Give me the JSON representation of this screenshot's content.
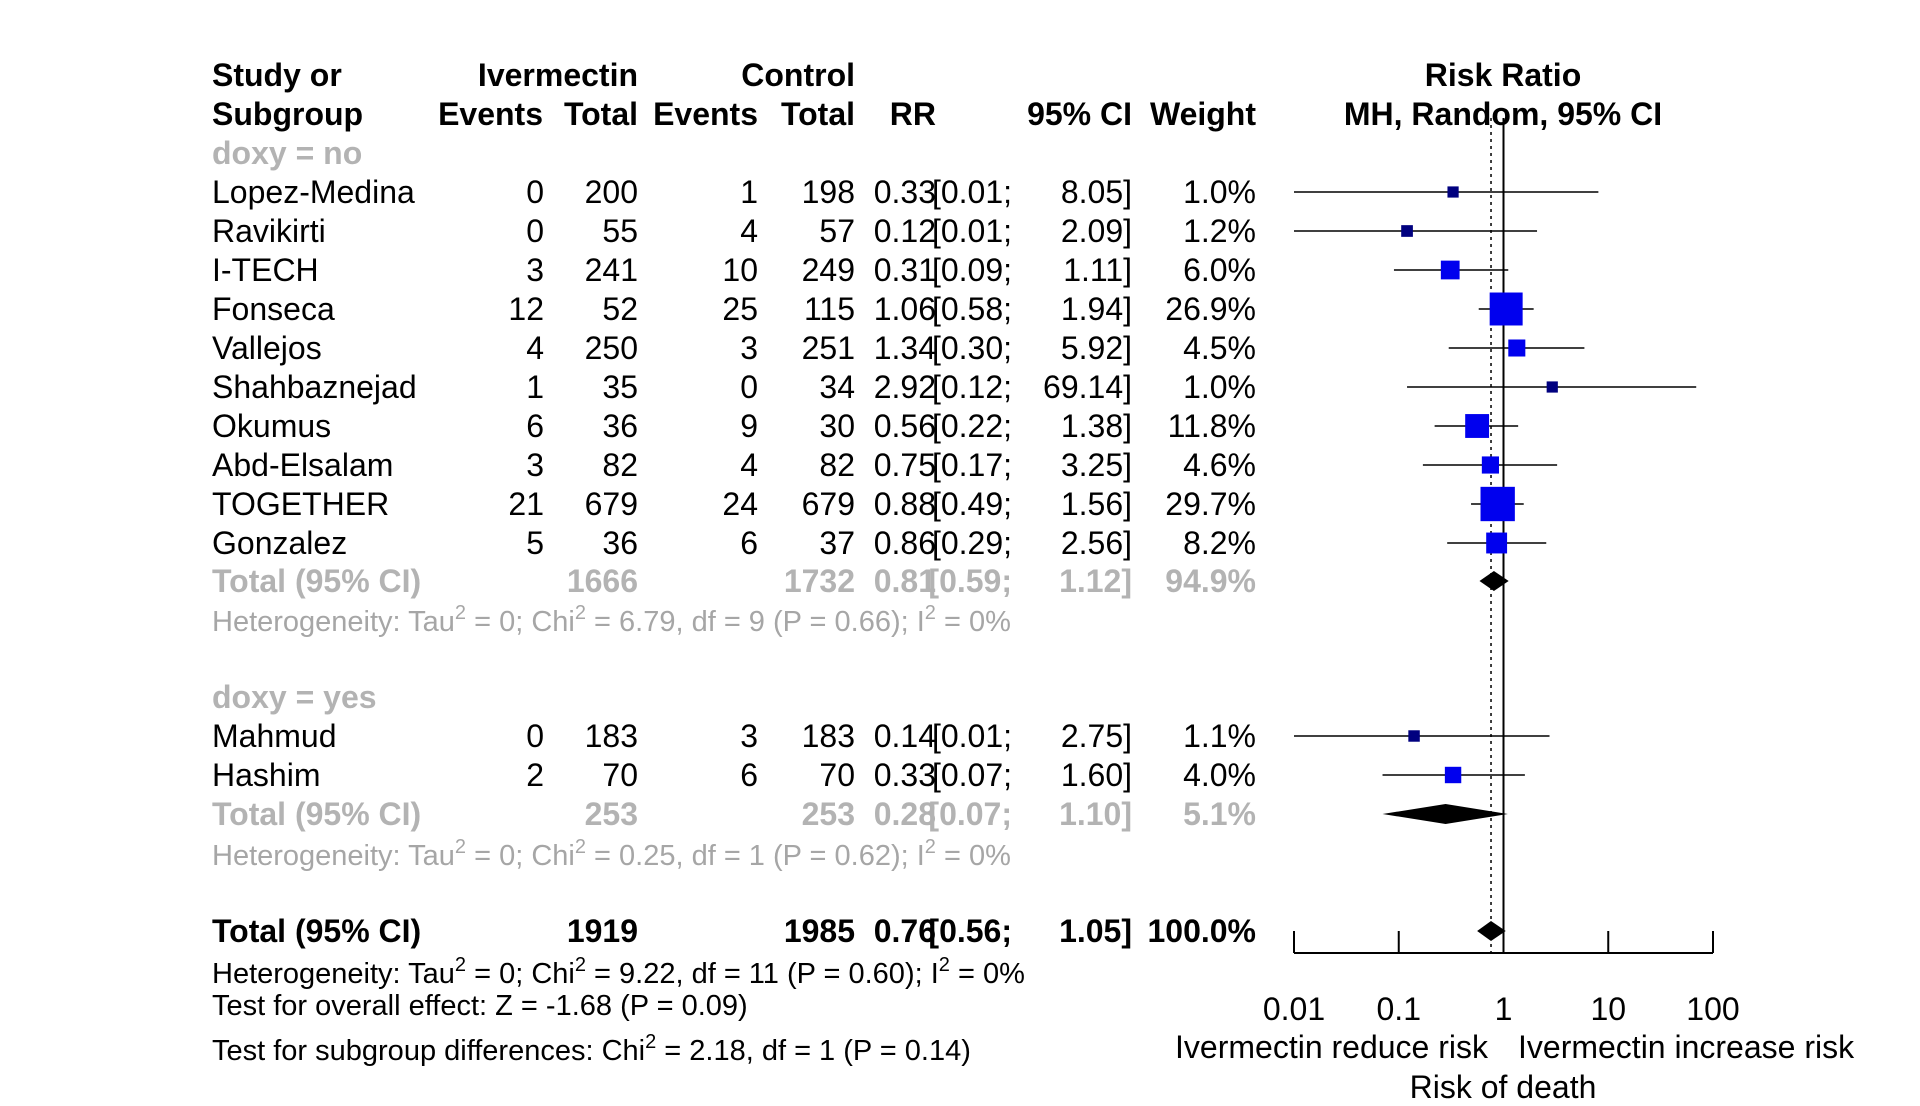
{
  "chart_data": {
    "type": "forest",
    "columns": {
      "study": [
        "Study or",
        "Subgroup"
      ],
      "ivermectin": "Ivermectin",
      "control": "Control",
      "events": "Events",
      "total": "Total",
      "rr": "RR",
      "ci": "95% CI",
      "weight": "Weight",
      "plot": [
        "Risk Ratio",
        "MH, Random, 95% CI"
      ]
    },
    "subgroups": [
      {
        "label": "doxy = no",
        "studies": [
          {
            "name": "Lopez-Medina",
            "ev_i": "0",
            "tot_i": "200",
            "ev_c": "1",
            "tot_c": "198",
            "rr": "0.33",
            "lo": "[0.01;",
            "hi": "8.05]",
            "weight": "1.0%",
            "rr_v": 0.33,
            "lo_v": 0.01,
            "hi_v": 8.05,
            "w_v": 1.0
          },
          {
            "name": "Ravikirti",
            "ev_i": "0",
            "tot_i": "55",
            "ev_c": "4",
            "tot_c": "57",
            "rr": "0.12",
            "lo": "[0.01;",
            "hi": "2.09]",
            "weight": "1.2%",
            "rr_v": 0.12,
            "lo_v": 0.01,
            "hi_v": 2.09,
            "w_v": 1.2
          },
          {
            "name": "I-TECH",
            "ev_i": "3",
            "tot_i": "241",
            "ev_c": "10",
            "tot_c": "249",
            "rr": "0.31",
            "lo": "[0.09;",
            "hi": "1.11]",
            "weight": "6.0%",
            "rr_v": 0.31,
            "lo_v": 0.09,
            "hi_v": 1.11,
            "w_v": 6.0
          },
          {
            "name": "Fonseca",
            "ev_i": "12",
            "tot_i": "52",
            "ev_c": "25",
            "tot_c": "115",
            "rr": "1.06",
            "lo": "[0.58;",
            "hi": "1.94]",
            "weight": "26.9%",
            "rr_v": 1.06,
            "lo_v": 0.58,
            "hi_v": 1.94,
            "w_v": 26.9
          },
          {
            "name": "Vallejos",
            "ev_i": "4",
            "tot_i": "250",
            "ev_c": "3",
            "tot_c": "251",
            "rr": "1.34",
            "lo": "[0.30;",
            "hi": "5.92]",
            "weight": "4.5%",
            "rr_v": 1.34,
            "lo_v": 0.3,
            "hi_v": 5.92,
            "w_v": 4.5
          },
          {
            "name": "Shahbaznejad",
            "ev_i": "1",
            "tot_i": "35",
            "ev_c": "0",
            "tot_c": "34",
            "rr": "2.92",
            "lo": "[0.12;",
            "hi": "69.14]",
            "weight": "1.0%",
            "rr_v": 2.92,
            "lo_v": 0.12,
            "hi_v": 69.14,
            "w_v": 1.0
          },
          {
            "name": "Okumus",
            "ev_i": "6",
            "tot_i": "36",
            "ev_c": "9",
            "tot_c": "30",
            "rr": "0.56",
            "lo": "[0.22;",
            "hi": "1.38]",
            "weight": "11.8%",
            "rr_v": 0.56,
            "lo_v": 0.22,
            "hi_v": 1.38,
            "w_v": 11.8
          },
          {
            "name": "Abd-Elsalam",
            "ev_i": "3",
            "tot_i": "82",
            "ev_c": "4",
            "tot_c": "82",
            "rr": "0.75",
            "lo": "[0.17;",
            "hi": "3.25]",
            "weight": "4.6%",
            "rr_v": 0.75,
            "lo_v": 0.17,
            "hi_v": 3.25,
            "w_v": 4.6
          },
          {
            "name": "TOGETHER",
            "ev_i": "21",
            "tot_i": "679",
            "ev_c": "24",
            "tot_c": "679",
            "rr": "0.88",
            "lo": "[0.49;",
            "hi": "1.56]",
            "weight": "29.7%",
            "rr_v": 0.88,
            "lo_v": 0.49,
            "hi_v": 1.56,
            "w_v": 29.7
          },
          {
            "name": "Gonzalez",
            "ev_i": "5",
            "tot_i": "36",
            "ev_c": "6",
            "tot_c": "37",
            "rr": "0.86",
            "lo": "[0.29;",
            "hi": "2.56]",
            "weight": "8.2%",
            "rr_v": 0.86,
            "lo_v": 0.29,
            "hi_v": 2.56,
            "w_v": 8.2
          }
        ],
        "total": {
          "name": "Total (95% CI)",
          "tot_i": "1666",
          "tot_c": "1732",
          "rr": "0.81",
          "lo": "[0.59;",
          "hi": "1.12]",
          "weight": "94.9%",
          "rr_v": 0.81,
          "lo_v": 0.59,
          "hi_v": 1.12
        },
        "heterogeneity": {
          "a": "Heterogeneity: Tau",
          "b": " = 0; Chi",
          "c": " = 6.79, df = 9 (P = 0.66); I",
          "d": " = 0%"
        }
      },
      {
        "label": "doxy = yes",
        "studies": [
          {
            "name": "Mahmud",
            "ev_i": "0",
            "tot_i": "183",
            "ev_c": "3",
            "tot_c": "183",
            "rr": "0.14",
            "lo": "[0.01;",
            "hi": "2.75]",
            "weight": "1.1%",
            "rr_v": 0.14,
            "lo_v": 0.01,
            "hi_v": 2.75,
            "w_v": 1.1
          },
          {
            "name": "Hashim",
            "ev_i": "2",
            "tot_i": "70",
            "ev_c": "6",
            "tot_c": "70",
            "rr": "0.33",
            "lo": "[0.07;",
            "hi": "1.60]",
            "weight": "4.0%",
            "rr_v": 0.33,
            "lo_v": 0.07,
            "hi_v": 1.6,
            "w_v": 4.0
          }
        ],
        "total": {
          "name": "Total (95% CI)",
          "tot_i": "253",
          "tot_c": "253",
          "rr": "0.28",
          "lo": "[0.07;",
          "hi": "1.10]",
          "weight": "5.1%",
          "rr_v": 0.28,
          "lo_v": 0.07,
          "hi_v": 1.1
        },
        "heterogeneity": {
          "a": "Heterogeneity: Tau",
          "b": " = 0; Chi",
          "c": " = 0.25, df = 1 (P = 0.62); I",
          "d": " = 0%"
        }
      }
    ],
    "overall": {
      "name": "Total (95% CI)",
      "tot_i": "1919",
      "tot_c": "1985",
      "rr": "0.76",
      "lo": "[0.56;",
      "hi": "1.05]",
      "weight": "100.0%",
      "rr_v": 0.76,
      "lo_v": 0.56,
      "hi_v": 1.05
    },
    "overall_heterogeneity": {
      "a": "Heterogeneity: Tau",
      "b": " = 0; Chi",
      "c": " = 9.22, df = 11 (P = 0.60); I",
      "d": " = 0%"
    },
    "overall_effect": "Test for overall effect: Z = -1.68 (P = 0.09)",
    "subgroup_test": {
      "a": "Test for subgroup differences: Chi",
      "b": " = 2.18, df = 1 (P = 0.14)"
    },
    "superscript": "2",
    "x_axis": {
      "scale": "log",
      "range": [
        0.01,
        100
      ],
      "ticks": [
        0.01,
        0.1,
        1,
        10,
        100
      ],
      "tick_labels": [
        "0.01",
        "0.1",
        "1",
        "10",
        "100"
      ],
      "left_label": "Ivermectin reduce risk",
      "right_label": "Ivermectin increase risk",
      "title": "Risk of death"
    },
    "null_line": 1,
    "pooled_line": 0.76,
    "colors": {
      "study_box": "#0000ee",
      "study_box_small": "#00007f",
      "diamond": "#000000",
      "subgroup_text": "#b3b3b3",
      "heterogeneity_text": "#a6a6a6"
    }
  }
}
